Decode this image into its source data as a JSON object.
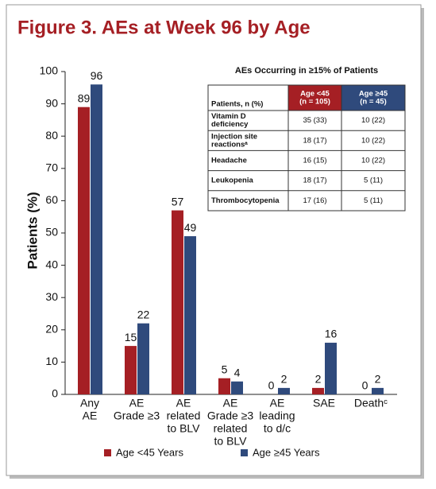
{
  "chart_data": {
    "type": "bar",
    "title": "Figure 3. AEs at Week 96 by Age",
    "y_label": "Patients (%)",
    "categories": [
      [
        "Any",
        "AE"
      ],
      [
        "AE",
        "Grade ≥3"
      ],
      [
        "AE",
        "related",
        "to BLV"
      ],
      [
        "AE",
        "Grade ≥3",
        "related",
        "to BLV"
      ],
      [
        "AE",
        "leading",
        "to d/c"
      ],
      [
        "SAE"
      ],
      [
        "Deathᶜ"
      ]
    ],
    "series": [
      {
        "name": "Age <45 Years",
        "color": "#a51f24",
        "values": [
          89,
          15,
          57,
          5,
          0,
          2,
          0
        ]
      },
      {
        "name": "Age ≥45 Years",
        "color": "#2f4a7c",
        "values": [
          96,
          22,
          49,
          4,
          2,
          16,
          2
        ]
      }
    ],
    "ylim": [
      0,
      100
    ],
    "yticks": [
      0,
      10,
      20,
      30,
      40,
      50,
      60,
      70,
      80,
      90,
      100
    ],
    "grid": false,
    "legend": "bottom"
  },
  "table": {
    "title": "AEs Occurring in ≥15% of Patients",
    "columns": [
      "Patients, n (%)",
      [
        "Age <45",
        "(n = 105)"
      ],
      [
        "Age ≥45",
        "(n = 45)"
      ]
    ],
    "rows": [
      [
        [
          "Vitamin D",
          "deficiency"
        ],
        "35 (33)",
        "10 (22)"
      ],
      [
        [
          "Injection site",
          "reactionsᵃ"
        ],
        "18 (17)",
        "10 (22)"
      ],
      [
        "Headache",
        "16 (15)",
        "10 (22)"
      ],
      [
        "Leukopenia",
        "18 (17)",
        "5 (11)"
      ],
      [
        "Thrombocytopenia",
        "17 (16)",
        "5 (11)"
      ]
    ]
  }
}
